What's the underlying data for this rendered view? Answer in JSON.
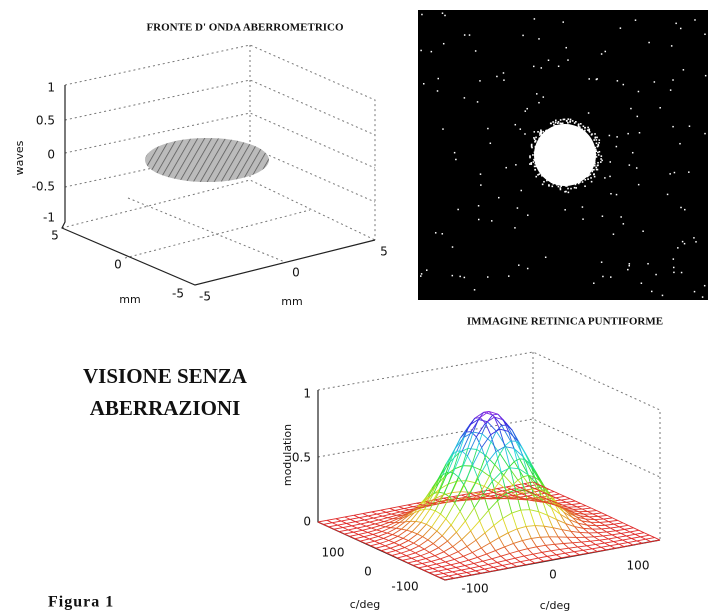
{
  "wavefront_plot": {
    "title": "FRONTE D' ONDA ABERROMETRICO",
    "z_label": "waves",
    "z_ticks": [
      "1",
      "0.5",
      "0",
      "-0.5",
      "-1"
    ],
    "left_axis_ticks": [
      "5",
      "0",
      "-5"
    ],
    "left_axis_label": "mm",
    "right_axis_ticks": [
      "-5",
      "0",
      "5"
    ],
    "right_axis_label": "mm"
  },
  "retinal_image": {
    "caption": "IMMAGINE RETINICA PUNTIFORME"
  },
  "heading": {
    "lines": [
      "VISIONE SENZA",
      "ABERRAZIONI"
    ]
  },
  "mtf_plot": {
    "z_label": "modulation",
    "z_ticks": [
      "1",
      "0.5",
      "0"
    ],
    "left_axis_ticks": [
      "100",
      "0",
      "-100"
    ],
    "left_axis_label": "c/deg",
    "right_axis_ticks": [
      "-100",
      "0",
      "100"
    ],
    "right_axis_label": "c/deg"
  },
  "figure_label": "Figura 1"
}
